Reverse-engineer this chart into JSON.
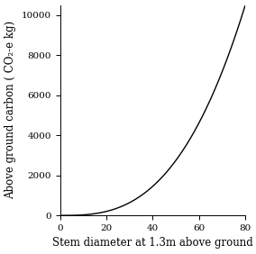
{
  "xlabel": "Stem diameter at 1.3m above ground",
  "ylabel": "Above ground carbon ( CO₂-e kg)",
  "xlim": [
    0,
    80
  ],
  "ylim": [
    0,
    10500
  ],
  "xticks": [
    0,
    20,
    40,
    60,
    80
  ],
  "yticks": [
    0,
    2000,
    4000,
    6000,
    8000,
    10000
  ],
  "line_color": "#000000",
  "bg_color": "#ffffff",
  "line_width": 1.0,
  "curve_c": 0.022,
  "curve_p": 2.85,
  "xlabel_fontsize": 8.5,
  "ylabel_fontsize": 8.5,
  "tick_fontsize": 7.5
}
